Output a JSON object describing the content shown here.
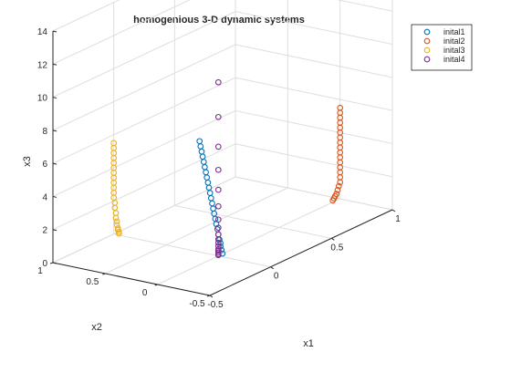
{
  "chart_data": {
    "type": "scatter3d",
    "title": "homogenious 3-D dynamic systems",
    "xlabel": "x1",
    "ylabel": "x2",
    "zlabel": "x3",
    "xlim": [
      -0.5,
      1
    ],
    "ylim": [
      -0.5,
      1
    ],
    "zlim": [
      0,
      14
    ],
    "xticks": [
      "-0.5",
      "0",
      "0.5",
      "1"
    ],
    "yticks": [
      "-0.5",
      "0",
      "0.5",
      "1"
    ],
    "zticks": [
      "0",
      "2",
      "4",
      "6",
      "8",
      "10",
      "12",
      "14"
    ],
    "grid": true,
    "legend_position": "top-right",
    "marker": "open-circle",
    "series": [
      {
        "name": "inital1",
        "color": "#0072BD",
        "x": [
          0,
          0,
          0,
          0,
          0,
          0,
          0,
          0,
          0,
          0,
          0,
          0,
          0,
          0,
          0,
          0,
          0,
          0,
          0,
          0,
          0,
          0,
          0,
          0
        ],
        "y": [
          -0.04,
          -0.03,
          -0.02,
          -0.02,
          -0.01,
          0,
          0.01,
          0.02,
          0.03,
          0.04,
          0.05,
          0.06,
          0.07,
          0.08,
          0.09,
          0.1,
          0.11,
          0.12,
          0.13,
          0.14,
          0.15,
          0.16,
          0.17,
          0.18
        ],
        "z": [
          0.2,
          0.4,
          0.6,
          0.8,
          1.0,
          1.3,
          1.6,
          1.9,
          2.2,
          2.5,
          2.8,
          3.1,
          3.4,
          3.7,
          4.0,
          4.3,
          4.6,
          4.9,
          5.2,
          5.5,
          5.8,
          6.1,
          6.4,
          6.7
        ]
      },
      {
        "name": "inital2",
        "color": "#D95319",
        "x": [
          0.94,
          0.95,
          0.96,
          0.97,
          0.98,
          0.99,
          1.0,
          1.0,
          1.0,
          1.0,
          1.0,
          1.0,
          1.0,
          1.0,
          1.0,
          1.0,
          1.0,
          1.0,
          1.0,
          1.0,
          1.0,
          1.0
        ],
        "y": [
          0,
          0,
          0,
          0,
          0,
          0,
          0,
          0,
          0,
          0,
          0,
          0,
          0,
          0,
          0,
          0,
          0,
          0,
          0,
          0,
          0,
          0
        ],
        "z": [
          0.1,
          0.2,
          0.3,
          0.4,
          0.6,
          0.8,
          1.0,
          1.3,
          1.6,
          1.9,
          2.2,
          2.5,
          2.8,
          3.1,
          3.4,
          3.7,
          4.0,
          4.3,
          4.6,
          4.9,
          5.2,
          5.5
        ]
      },
      {
        "name": "inital3",
        "color": "#EDB120",
        "x": [
          0,
          0,
          0,
          0,
          0,
          0,
          0,
          0,
          0,
          0,
          0,
          0,
          0,
          0,
          0,
          0,
          0,
          0,
          0,
          0,
          0,
          0
        ],
        "y": [
          0.95,
          0.95,
          0.96,
          0.96,
          0.97,
          0.97,
          0.98,
          0.98,
          0.99,
          0.99,
          1.0,
          1.0,
          1.0,
          1.0,
          1.0,
          1.0,
          1.0,
          1.0,
          1.0,
          1.0,
          1.0,
          1.0
        ],
        "z": [
          0.1,
          0.2,
          0.3,
          0.4,
          0.6,
          0.8,
          1.0,
          1.3,
          1.6,
          1.9,
          2.2,
          2.5,
          2.8,
          3.1,
          3.4,
          3.7,
          4.0,
          4.3,
          4.6,
          4.9,
          5.2,
          5.5
        ]
      },
      {
        "name": "inital4",
        "color": "#7E2F8E",
        "x": [
          0,
          0,
          0,
          0,
          0,
          0,
          0,
          0,
          0,
          0,
          0,
          0,
          0,
          0,
          0,
          0,
          0
        ],
        "y": [
          0,
          0,
          0,
          0,
          0,
          0,
          0,
          0,
          0,
          0,
          0,
          0,
          0,
          0,
          0,
          0,
          0
        ],
        "z": [
          0.05,
          0.1,
          0.2,
          0.3,
          0.4,
          0.6,
          0.8,
          1.0,
          1.3,
          1.7,
          2.2,
          3.0,
          4.0,
          5.2,
          6.6,
          8.4,
          10.5
        ]
      }
    ]
  }
}
